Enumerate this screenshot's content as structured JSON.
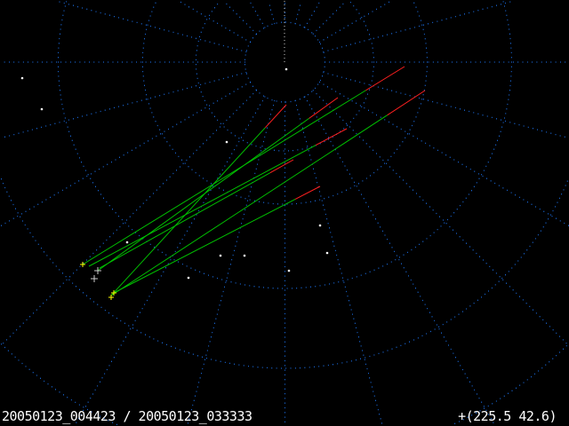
{
  "footer": {
    "files": "20050123_004423 / 20050123_033333",
    "cursor_coord": "+(225.5 42.6)"
  },
  "colors": {
    "grid": "#1e7bff",
    "meteor": "#00c000",
    "meteor_tip": "#ff2020",
    "radiant": "#ffff00",
    "star": "#ffffff"
  }
}
